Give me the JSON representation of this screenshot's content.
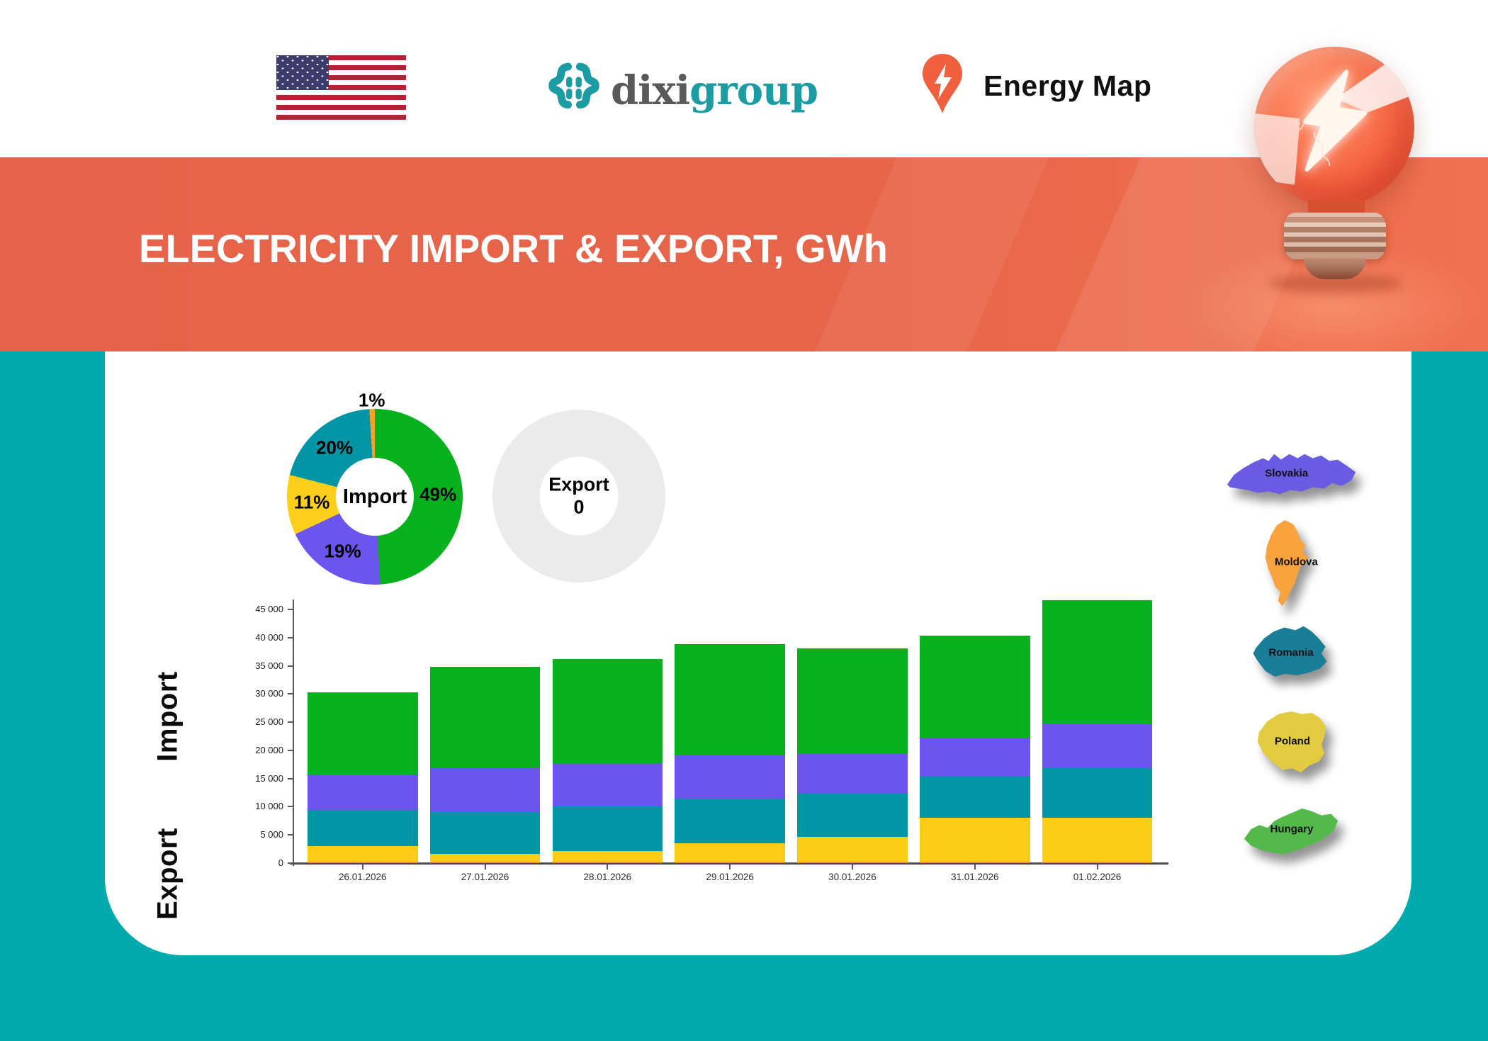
{
  "header": {
    "brand": {
      "dixi": "dixi",
      "group": "group"
    },
    "energy_map_label": "Energy Map"
  },
  "banner": {
    "title": "ELECTRICITY IMPORT & EXPORT, GWh"
  },
  "import_donut": {
    "center_label": "Import",
    "slices": [
      {
        "country": "Hungary",
        "pct": 49,
        "label": "49%",
        "color": "#07B01D"
      },
      {
        "country": "Slovakia",
        "pct": 19,
        "label": "19%",
        "color": "#6C54EF"
      },
      {
        "country": "Poland",
        "pct": 11,
        "label": "11%",
        "color": "#FDCF1B"
      },
      {
        "country": "Romania",
        "pct": 20,
        "label": "20%",
        "color": "#0295A5"
      },
      {
        "country": "Moldova",
        "pct": 1,
        "label": "1%",
        "color": "#F9A21F"
      }
    ]
  },
  "export_donut": {
    "center_label": "Export",
    "value": "0",
    "ring_color": "#EBEBEB"
  },
  "side_labels": {
    "import": "Import",
    "export": "Export"
  },
  "chart_data": {
    "type": "bar",
    "stacked": true,
    "categories": [
      "26.01.2026",
      "27.01.2026",
      "28.01.2026",
      "29.01.2026",
      "30.01.2026",
      "31.01.2026",
      "01.02.2026"
    ],
    "series": [
      {
        "name": "Moldova",
        "color": "#F5930B",
        "values": [
          300,
          200,
          200,
          200,
          200,
          200,
          200
        ]
      },
      {
        "name": "Poland",
        "color": "#FCCD17",
        "values": [
          2700,
          1500,
          1900,
          3300,
          4400,
          7800,
          7900
        ]
      },
      {
        "name": "Romania",
        "color": "#0295A5",
        "values": [
          6400,
          7300,
          7900,
          8000,
          7700,
          7300,
          8700
        ]
      },
      {
        "name": "Slovakia",
        "color": "#6C54EF",
        "values": [
          6200,
          8000,
          7700,
          7600,
          7100,
          7000,
          7900
        ]
      },
      {
        "name": "Hungary",
        "color": "#07B01D",
        "values": [
          14700,
          17800,
          18500,
          19800,
          18700,
          18100,
          21900
        ]
      }
    ],
    "totals": [
      30300,
      34800,
      36200,
      38900,
      38100,
      40400,
      46600
    ],
    "ylim": [
      0,
      45000
    ],
    "ytick_step": 5000,
    "grid": false,
    "legend_position": "none"
  },
  "maps": [
    {
      "name": "Slovakia",
      "color": "#6A5BE2"
    },
    {
      "name": "Moldova",
      "color": "#F9A33F"
    },
    {
      "name": "Romania",
      "color": "#1A7E99"
    },
    {
      "name": "Poland",
      "color": "#E2CB40"
    },
    {
      "name": "Hungary",
      "color": "#53B94A"
    }
  ]
}
